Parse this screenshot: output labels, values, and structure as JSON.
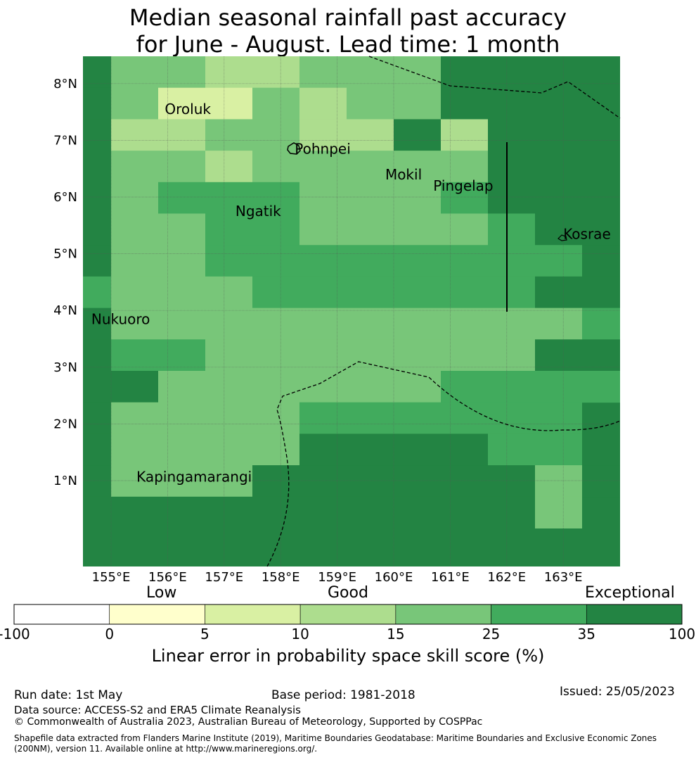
{
  "title": {
    "line1": "Median seasonal rainfall past accuracy",
    "line2": "for June - August. Lead time: 1 month"
  },
  "map": {
    "lon_range": [
      154.5,
      164.0
    ],
    "lat_range": [
      -0.3,
      8.5
    ],
    "lon_ticks": [
      {
        "value": 155,
        "label": "155°E"
      },
      {
        "value": 156,
        "label": "156°E"
      },
      {
        "value": 157,
        "label": "157°E"
      },
      {
        "value": 158,
        "label": "158°E"
      },
      {
        "value": 159,
        "label": "159°E"
      },
      {
        "value": 160,
        "label": "160°E"
      },
      {
        "value": 161,
        "label": "161°E"
      },
      {
        "value": 162,
        "label": "162°E"
      },
      {
        "value": 163,
        "label": "163°E"
      }
    ],
    "lat_ticks": [
      {
        "value": 1,
        "label": "1°N"
      },
      {
        "value": 2,
        "label": "2°N"
      },
      {
        "value": 3,
        "label": "3°N"
      },
      {
        "value": 4,
        "label": "4°N"
      },
      {
        "value": 5,
        "label": "5°N"
      },
      {
        "value": 6,
        "label": "6°N"
      },
      {
        "value": 7,
        "label": "7°N"
      },
      {
        "value": 8,
        "label": "8°N"
      }
    ],
    "places": [
      {
        "name": "Oroluk",
        "lon": 155.95,
        "lat": 7.55
      },
      {
        "name": "Pohnpei",
        "lon": 158.25,
        "lat": 6.85
      },
      {
        "name": "Mokil",
        "lon": 159.85,
        "lat": 6.4
      },
      {
        "name": "Pingelap",
        "lon": 160.7,
        "lat": 6.2
      },
      {
        "name": "Ngatik",
        "lon": 157.2,
        "lat": 5.75
      },
      {
        "name": "Kosrae",
        "lon": 163.0,
        "lat": 5.35
      },
      {
        "name": "Nukuoro",
        "lon": 154.65,
        "lat": 3.85
      },
      {
        "name": "Kapingamarangi",
        "lon": 155.45,
        "lat": 1.07
      }
    ]
  },
  "chart_data": {
    "type": "heatmap",
    "title": "Median seasonal rainfall past accuracy for June - August. Lead time: 1 month",
    "colorbar_label": "Linear error in probability space skill score (%)",
    "bins": [
      {
        "from": -100,
        "to": 0,
        "color": "#ffffff"
      },
      {
        "from": 0,
        "to": 5,
        "color": "#ffffcc"
      },
      {
        "from": 5,
        "to": 10,
        "color": "#d9f0a3"
      },
      {
        "from": 10,
        "to": 15,
        "color": "#addd8e"
      },
      {
        "from": 15,
        "to": 25,
        "color": "#78c679"
      },
      {
        "from": 25,
        "to": 35,
        "color": "#41ab5d"
      },
      {
        "from": 35,
        "to": 100,
        "color": "#238443"
      }
    ],
    "colorbar_ticks": [
      "-100",
      "0",
      "5",
      "10",
      "15",
      "25",
      "35",
      "100"
    ],
    "category_words": {
      "low": "Low",
      "good": "Good",
      "exceptional": "Exceptional"
    },
    "cell_size_deg": 0.83,
    "cell_origin": {
      "lon": 154.01,
      "lat": -0.33
    },
    "rows_north_to_south": [
      "F5544555F",
      "E5335455E",
      "E445544E4",
      "E55455555E",
      "E56665556EE",
      "E556655556E",
      "F5566666666E",
      "6555666666EE",
      "F55555555556E",
      "F665555555EE",
      "FF5555556666",
      "F5555666666",
      "F5555FFFF66",
      "F555FFFFFF5F",
      "FFFFFFFFFF5"
    ],
    "rows_note": "codes: 3=5-10%, 4=10-15%, 5=15-25%, 6=25-35%, E/F=35-100%"
  },
  "footer": {
    "run_date": "Run date: 1st May",
    "base_period": "Base period: 1981-2018",
    "issued": "Issued: 25/05/2023",
    "data_source": "Data source: ACCESS-S2 and ERA5 Climate Reanalysis",
    "copyright": "© Commonwealth of Australia 2023, Australian Bureau of Meteorology, Supported by COSPPac",
    "shapefile": "Shapefile data extracted from Flanders Marine Institute (2019), Maritime Boundaries Geodatabase: Maritime Boundaries and Exclusive Economic Zones (200NM), version 11. Available online at http://www.marineregions.org/."
  }
}
